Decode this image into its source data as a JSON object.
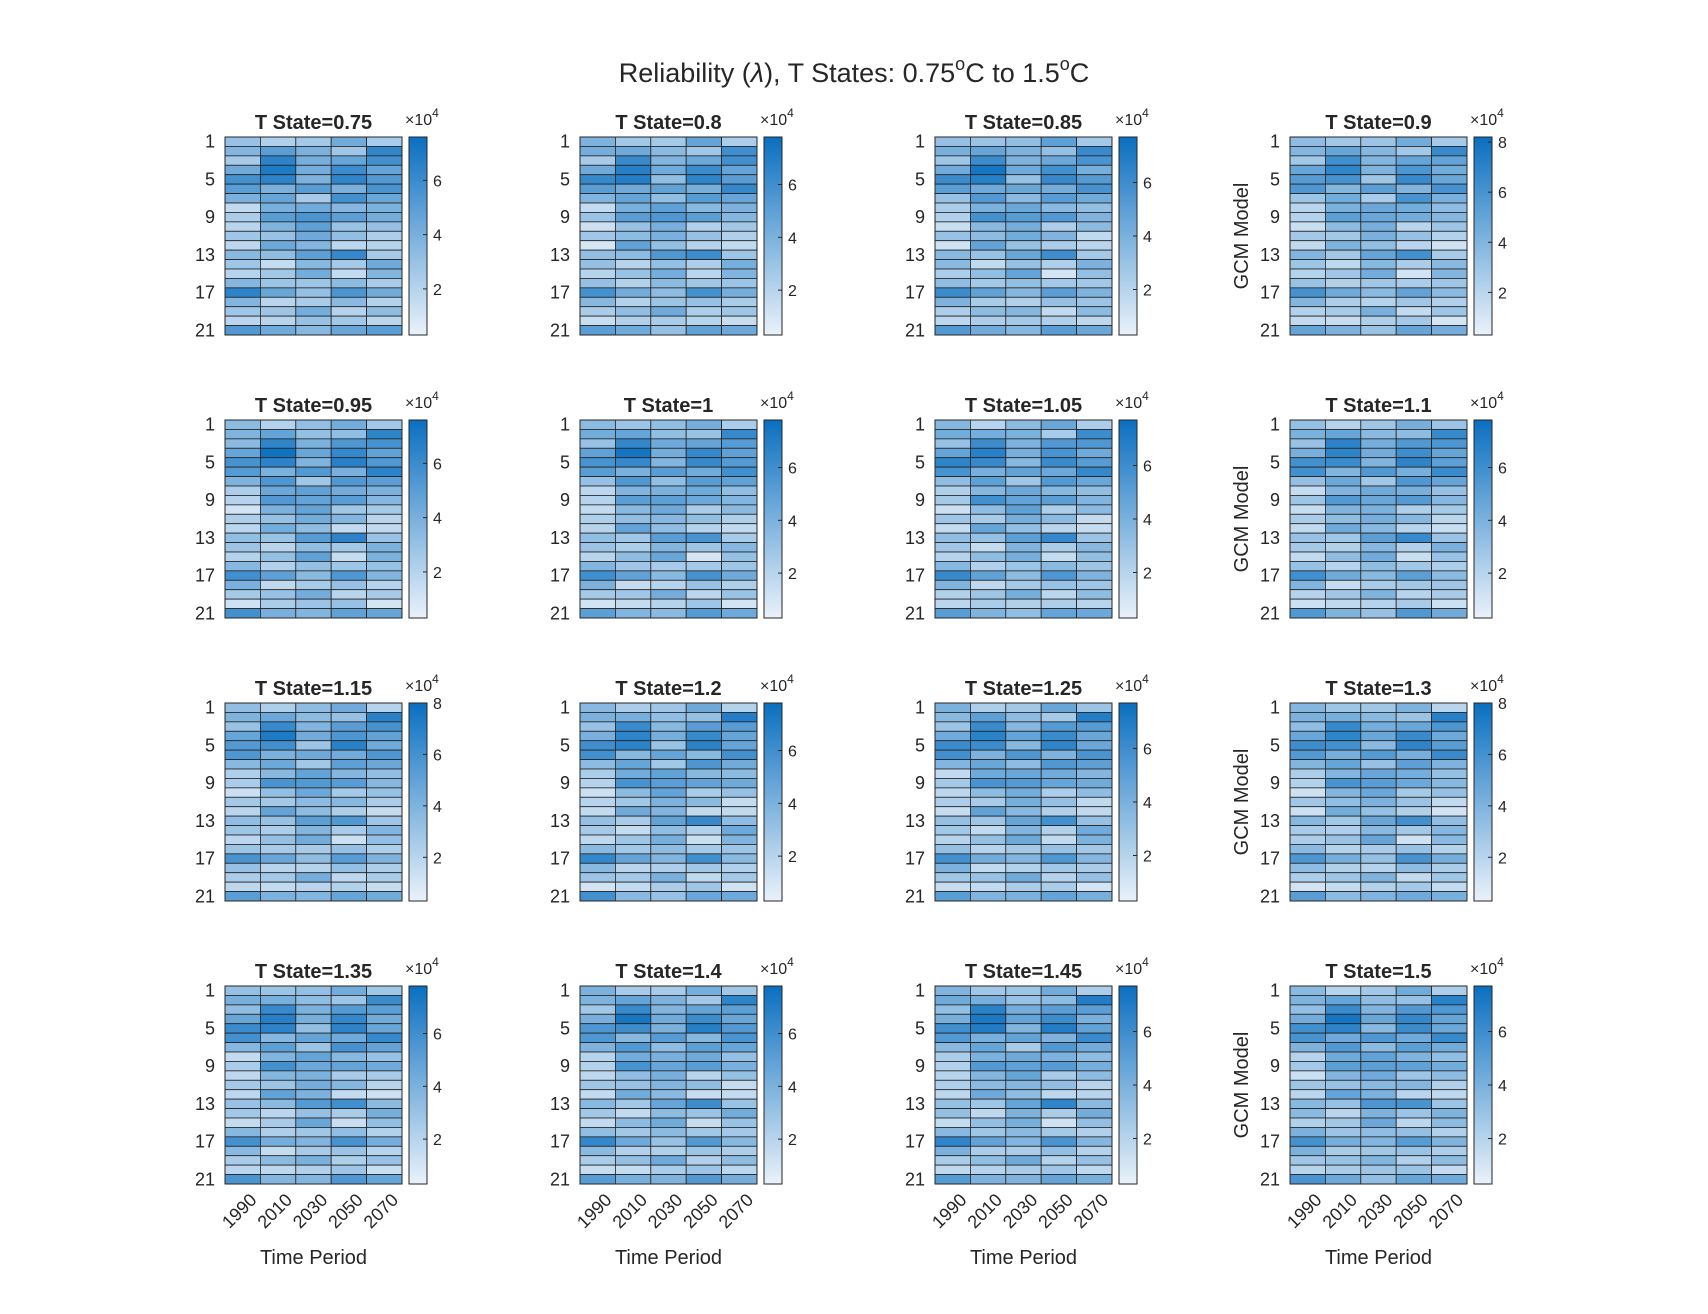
{
  "figure": {
    "title_prefix": "Reliability (",
    "title_symbol": "λ",
    "title_mid": "), T States: 0.75",
    "degree_sup": "o",
    "title_unit_1": "C to 1.5",
    "title_unit_2": "C"
  },
  "chart_data": {
    "type": "heatmap",
    "colormap": [
      "#eaf2fa",
      "#0a6fc0"
    ],
    "xlabel": "Time Period",
    "ylabel": "GCM Model",
    "x_tick_labels": [
      "1990",
      "2010",
      "2030",
      "2050",
      "2070"
    ],
    "y_tick_labels": [
      "1",
      "5",
      "9",
      "13",
      "17",
      "21"
    ],
    "rows": 21,
    "colorbar_multiplier": "×10",
    "colorbar_exponent": "4",
    "panels": [
      {
        "title": "T State=0.75",
        "cbar_ticks": [
          "2",
          "4",
          "6"
        ],
        "cmax": 7.6
      },
      {
        "title": "T State=0.8",
        "cbar_ticks": [
          "2",
          "4",
          "6"
        ],
        "cmax": 7.8
      },
      {
        "title": "T State=0.85",
        "cbar_ticks": [
          "2",
          "4",
          "6"
        ],
        "cmax": 7.7
      },
      {
        "title": "T State=0.9",
        "cbar_ticks": [
          "2",
          "4",
          "6",
          "8"
        ],
        "cmax": 8.2
      },
      {
        "title": "T State=0.95",
        "cbar_ticks": [
          "2",
          "4",
          "6"
        ],
        "cmax": 7.6
      },
      {
        "title": "T State=1",
        "cbar_ticks": [
          "2",
          "4",
          "6"
        ],
        "cmax": 7.8
      },
      {
        "title": "T State=1.05",
        "cbar_ticks": [
          "2",
          "4",
          "6"
        ],
        "cmax": 7.7
      },
      {
        "title": "T State=1.1",
        "cbar_ticks": [
          "2",
          "4",
          "6"
        ],
        "cmax": 7.8
      },
      {
        "title": "T State=1.15",
        "cbar_ticks": [
          "2",
          "4",
          "6",
          "8"
        ],
        "cmax": 8.0
      },
      {
        "title": "T State=1.2",
        "cbar_ticks": [
          "2",
          "4",
          "6"
        ],
        "cmax": 7.8
      },
      {
        "title": "T State=1.25",
        "cbar_ticks": [
          "2",
          "4",
          "6"
        ],
        "cmax": 7.7
      },
      {
        "title": "T State=1.3",
        "cbar_ticks": [
          "2",
          "4",
          "6",
          "8"
        ],
        "cmax": 8.0
      },
      {
        "title": "T State=1.35",
        "cbar_ticks": [
          "2",
          "4",
          "6"
        ],
        "cmax": 7.8
      },
      {
        "title": "T State=1.4",
        "cbar_ticks": [
          "2",
          "4",
          "6"
        ],
        "cmax": 7.8
      },
      {
        "title": "T State=1.45",
        "cbar_ticks": [
          "2",
          "4",
          "6"
        ],
        "cmax": 7.7
      },
      {
        "title": "T State=1.5",
        "cbar_ticks": [
          "2",
          "4",
          "6"
        ],
        "cmax": 7.7
      }
    ],
    "base_matrix": [
      [
        3.5,
        2.5,
        3.0,
        4.5,
        2.5
      ],
      [
        4.0,
        4.5,
        3.5,
        3.0,
        6.5
      ],
      [
        3.0,
        6.5,
        4.0,
        5.0,
        5.5
      ],
      [
        4.5,
        7.0,
        4.5,
        6.0,
        4.5
      ],
      [
        6.0,
        6.5,
        3.5,
        6.5,
        5.0
      ],
      [
        5.5,
        4.0,
        5.0,
        4.0,
        6.0
      ],
      [
        3.5,
        5.0,
        3.0,
        5.5,
        4.5
      ],
      [
        2.0,
        4.0,
        4.5,
        4.0,
        3.5
      ],
      [
        2.5,
        5.5,
        5.0,
        5.0,
        4.0
      ],
      [
        1.5,
        3.5,
        4.5,
        2.5,
        3.0
      ],
      [
        2.5,
        3.0,
        4.0,
        3.5,
        2.0
      ],
      [
        1.5,
        4.5,
        3.5,
        2.0,
        1.5
      ],
      [
        3.5,
        3.0,
        5.0,
        6.0,
        3.0
      ],
      [
        3.0,
        2.0,
        3.5,
        2.5,
        4.0
      ],
      [
        2.0,
        3.0,
        4.5,
        1.5,
        3.5
      ],
      [
        3.5,
        2.5,
        3.0,
        3.0,
        2.5
      ],
      [
        6.0,
        4.5,
        3.5,
        5.5,
        4.0
      ],
      [
        3.5,
        2.0,
        2.5,
        3.0,
        2.5
      ],
      [
        2.5,
        3.0,
        4.0,
        2.0,
        3.0
      ],
      [
        1.5,
        2.0,
        2.5,
        2.5,
        1.5
      ],
      [
        5.5,
        4.0,
        3.5,
        5.0,
        4.5
      ]
    ]
  }
}
